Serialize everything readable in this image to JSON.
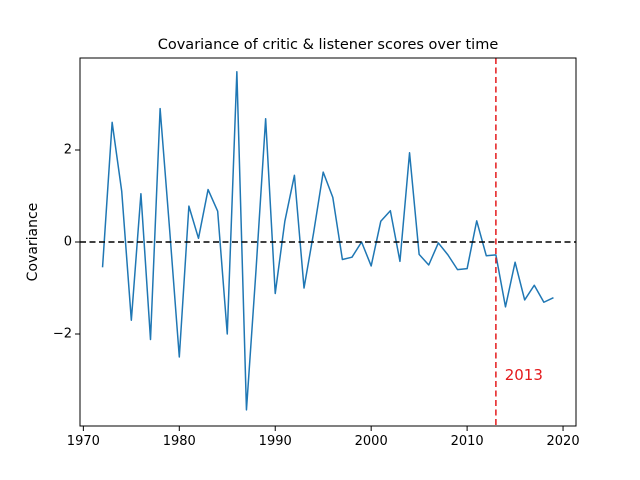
{
  "chart_data": {
    "type": "line",
    "title": "Covariance of critic & listener scores over time",
    "xlabel": "",
    "ylabel": "Covariance",
    "xlim": [
      1969.65,
      2021.35
    ],
    "ylim": [
      -4.0,
      4.0
    ],
    "x_ticks": [
      1970,
      1980,
      1990,
      2000,
      2010,
      2020
    ],
    "y_ticks": [
      -2,
      0,
      2
    ],
    "y_tick_labels": [
      "−2",
      "0",
      "2"
    ],
    "grid": false,
    "legend": "none",
    "series": [
      {
        "color": "#1f77b4",
        "x": [
          1972,
          1973,
          1974,
          1975,
          1976,
          1977,
          1978,
          1979,
          1980,
          1981,
          1982,
          1983,
          1984,
          1985,
          1986,
          1987,
          1988,
          1989,
          1990,
          1991,
          1992,
          1993,
          1994,
          1995,
          1996,
          1997,
          1998,
          1999,
          2000,
          2001,
          2002,
          2003,
          2004,
          2005,
          2006,
          2007,
          2008,
          2009,
          2010,
          2011,
          2012,
          2013,
          2014,
          2015,
          2016,
          2017,
          2018,
          2019
        ],
        "y": [
          -0.55,
          2.6,
          1.1,
          -1.7,
          1.05,
          -2.12,
          2.9,
          0.25,
          -2.5,
          0.78,
          0.08,
          1.14,
          0.67,
          -2.0,
          3.7,
          -3.65,
          -0.6,
          2.68,
          -1.12,
          0.45,
          1.45,
          -1.0,
          0.2,
          1.52,
          0.97,
          -0.38,
          -0.33,
          0.0,
          -0.52,
          0.45,
          0.68,
          -0.42,
          1.94,
          -0.27,
          -0.5,
          -0.02,
          -0.28,
          -0.6,
          -0.58,
          0.46,
          -0.3,
          -0.28,
          -1.41,
          -0.44,
          -1.26,
          -0.94,
          -1.31,
          -1.21
        ]
      }
    ],
    "reference_lines": [
      {
        "orientation": "horizontal",
        "value": 0,
        "style": "dashed",
        "color": "#000000"
      },
      {
        "orientation": "vertical",
        "value": 2013,
        "style": "dashed",
        "color": "#e41a1c"
      }
    ],
    "annotations": [
      {
        "text": "2013",
        "x": 2013.5,
        "y": -2.9,
        "color": "#e41a1c"
      }
    ]
  }
}
